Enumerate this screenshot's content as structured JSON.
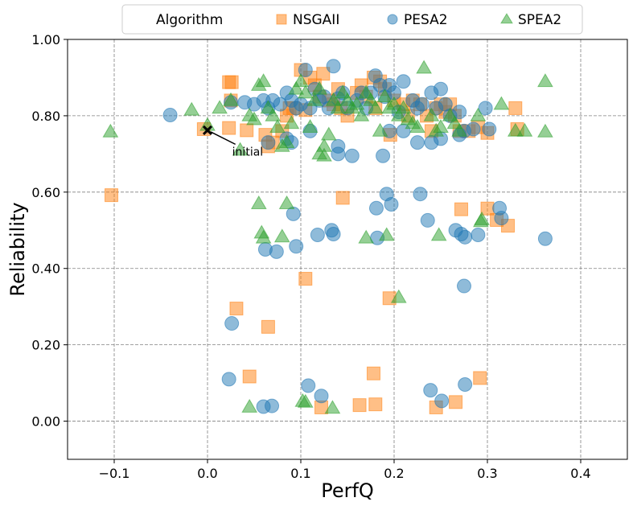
{
  "chart_data": {
    "type": "scatter",
    "xlabel": "PerfQ",
    "ylabel": "Reliability",
    "xlim": [
      -0.15,
      0.45
    ],
    "ylim": [
      -0.1,
      1.0
    ],
    "x_ticks": [
      "-0.1",
      "0.0",
      "0.1",
      "0.2",
      "0.3",
      "0.4"
    ],
    "x_tick_values": [
      -0.1,
      0.0,
      0.1,
      0.2,
      0.3,
      0.4
    ],
    "y_ticks": [
      "0.00",
      "0.20",
      "0.40",
      "0.60",
      "0.80",
      "1.00"
    ],
    "y_tick_values": [
      0.0,
      0.2,
      0.4,
      0.6,
      0.8,
      1.0
    ],
    "grid": true,
    "legend": {
      "title": "Algorithm",
      "placement": "top-center"
    },
    "annotation": {
      "text": "initial",
      "x": 0.0,
      "y": 0.762,
      "text_x": 0.023,
      "text_y": 0.7
    },
    "series": [
      {
        "name": "NSGAII",
        "marker": "square",
        "color": "#ff7f0e",
        "points": [
          [
            -0.103,
            0.592
          ],
          [
            -0.004,
            0.765
          ],
          [
            0.023,
            0.888
          ],
          [
            0.025,
            0.84
          ],
          [
            0.026,
            0.888
          ],
          [
            0.023,
            0.768
          ],
          [
            0.042,
            0.762
          ],
          [
            0.062,
            0.75
          ],
          [
            0.065,
            0.72
          ],
          [
            0.07,
            0.73
          ],
          [
            0.08,
            0.76
          ],
          [
            0.085,
            0.8
          ],
          [
            0.088,
            0.82
          ],
          [
            0.092,
            0.82
          ],
          [
            0.1,
            0.92
          ],
          [
            0.105,
            0.815
          ],
          [
            0.11,
            0.9
          ],
          [
            0.115,
            0.88
          ],
          [
            0.12,
            0.85
          ],
          [
            0.124,
            0.91
          ],
          [
            0.13,
            0.84
          ],
          [
            0.135,
            0.83
          ],
          [
            0.14,
            0.87
          ],
          [
            0.143,
            0.82
          ],
          [
            0.15,
            0.8
          ],
          [
            0.16,
            0.86
          ],
          [
            0.165,
            0.88
          ],
          [
            0.17,
            0.85
          ],
          [
            0.178,
            0.9
          ],
          [
            0.18,
            0.82
          ],
          [
            0.185,
            0.89
          ],
          [
            0.19,
            0.87
          ],
          [
            0.196,
            0.75
          ],
          [
            0.2,
            0.84
          ],
          [
            0.21,
            0.83
          ],
          [
            0.215,
            0.8
          ],
          [
            0.22,
            0.84
          ],
          [
            0.228,
            0.83
          ],
          [
            0.235,
            0.8
          ],
          [
            0.24,
            0.76
          ],
          [
            0.245,
            0.82
          ],
          [
            0.25,
            0.83
          ],
          [
            0.255,
            0.81
          ],
          [
            0.26,
            0.83
          ],
          [
            0.265,
            0.8
          ],
          [
            0.27,
            0.76
          ],
          [
            0.28,
            0.76
          ],
          [
            0.29,
            0.77
          ],
          [
            0.3,
            0.755
          ],
          [
            0.33,
            0.82
          ],
          [
            0.332,
            0.765
          ],
          [
            0.145,
            0.585
          ],
          [
            0.272,
            0.555
          ],
          [
            0.3,
            0.557
          ],
          [
            0.31,
            0.527
          ],
          [
            0.322,
            0.512
          ],
          [
            0.105,
            0.373
          ],
          [
            0.195,
            0.322
          ],
          [
            0.031,
            0.295
          ],
          [
            0.065,
            0.247
          ],
          [
            0.045,
            0.117
          ],
          [
            0.178,
            0.125
          ],
          [
            0.292,
            0.113
          ],
          [
            0.122,
            0.036
          ],
          [
            0.163,
            0.042
          ],
          [
            0.18,
            0.044
          ],
          [
            0.245,
            0.036
          ],
          [
            0.266,
            0.05
          ]
        ]
      },
      {
        "name": "PESA2",
        "marker": "circle",
        "color": "#1f77b4",
        "points": [
          [
            -0.04,
            0.802
          ],
          [
            0.025,
            0.835
          ],
          [
            0.04,
            0.835
          ],
          [
            0.05,
            0.83
          ],
          [
            0.06,
            0.84
          ],
          [
            0.065,
            0.82
          ],
          [
            0.07,
            0.84
          ],
          [
            0.078,
            0.83
          ],
          [
            0.085,
            0.86
          ],
          [
            0.09,
            0.84
          ],
          [
            0.095,
            0.82
          ],
          [
            0.1,
            0.83
          ],
          [
            0.105,
            0.92
          ],
          [
            0.11,
            0.82
          ],
          [
            0.115,
            0.87
          ],
          [
            0.12,
            0.84
          ],
          [
            0.125,
            0.85
          ],
          [
            0.13,
            0.82
          ],
          [
            0.135,
            0.93
          ],
          [
            0.14,
            0.845
          ],
          [
            0.145,
            0.86
          ],
          [
            0.15,
            0.82
          ],
          [
            0.16,
            0.84
          ],
          [
            0.165,
            0.86
          ],
          [
            0.17,
            0.82
          ],
          [
            0.175,
            0.86
          ],
          [
            0.18,
            0.905
          ],
          [
            0.185,
            0.88
          ],
          [
            0.19,
            0.85
          ],
          [
            0.195,
            0.88
          ],
          [
            0.2,
            0.86
          ],
          [
            0.205,
            0.81
          ],
          [
            0.21,
            0.89
          ],
          [
            0.22,
            0.84
          ],
          [
            0.225,
            0.82
          ],
          [
            0.23,
            0.83
          ],
          [
            0.24,
            0.86
          ],
          [
            0.245,
            0.82
          ],
          [
            0.25,
            0.87
          ],
          [
            0.255,
            0.83
          ],
          [
            0.26,
            0.8
          ],
          [
            0.27,
            0.81
          ],
          [
            0.275,
            0.76
          ],
          [
            0.285,
            0.765
          ],
          [
            0.298,
            0.82
          ],
          [
            0.302,
            0.765
          ],
          [
            0.195,
            0.76
          ],
          [
            0.21,
            0.76
          ],
          [
            0.225,
            0.73
          ],
          [
            0.24,
            0.73
          ],
          [
            0.25,
            0.74
          ],
          [
            0.27,
            0.75
          ],
          [
            0.085,
            0.74
          ],
          [
            0.09,
            0.73
          ],
          [
            0.11,
            0.76
          ],
          [
            0.14,
            0.7
          ],
          [
            0.14,
            0.72
          ],
          [
            0.155,
            0.695
          ],
          [
            0.188,
            0.695
          ],
          [
            0.065,
            0.73
          ],
          [
            0.192,
            0.595
          ],
          [
            0.228,
            0.595
          ],
          [
            0.197,
            0.568
          ],
          [
            0.181,
            0.558
          ],
          [
            0.092,
            0.543
          ],
          [
            0.236,
            0.526
          ],
          [
            0.313,
            0.558
          ],
          [
            0.315,
            0.532
          ],
          [
            0.266,
            0.5
          ],
          [
            0.272,
            0.49
          ],
          [
            0.276,
            0.482
          ],
          [
            0.29,
            0.488
          ],
          [
            0.133,
            0.5
          ],
          [
            0.135,
            0.49
          ],
          [
            0.118,
            0.488
          ],
          [
            0.182,
            0.48
          ],
          [
            0.095,
            0.458
          ],
          [
            0.062,
            0.45
          ],
          [
            0.074,
            0.444
          ],
          [
            0.362,
            0.478
          ],
          [
            0.275,
            0.354
          ],
          [
            0.026,
            0.256
          ],
          [
            0.023,
            0.11
          ],
          [
            0.108,
            0.093
          ],
          [
            0.122,
            0.066
          ],
          [
            0.239,
            0.081
          ],
          [
            0.276,
            0.096
          ],
          [
            0.251,
            0.053
          ],
          [
            0.06,
            0.038
          ],
          [
            0.069,
            0.04
          ]
        ]
      },
      {
        "name": "SPEA2",
        "marker": "triangle",
        "color": "#2ca02c",
        "points": [
          [
            -0.104,
            0.758
          ],
          [
            -0.017,
            0.815
          ],
          [
            0.0,
            0.775
          ],
          [
            0.013,
            0.82
          ],
          [
            0.025,
            0.84
          ],
          [
            0.035,
            0.71
          ],
          [
            0.045,
            0.8
          ],
          [
            0.05,
            0.79
          ],
          [
            0.055,
            0.88
          ],
          [
            0.06,
            0.89
          ],
          [
            0.065,
            0.82
          ],
          [
            0.07,
            0.8
          ],
          [
            0.075,
            0.77
          ],
          [
            0.08,
            0.72
          ],
          [
            0.085,
            0.73
          ],
          [
            0.09,
            0.78
          ],
          [
            0.095,
            0.87
          ],
          [
            0.1,
            0.89
          ],
          [
            0.105,
            0.86
          ],
          [
            0.11,
            0.77
          ],
          [
            0.115,
            0.84
          ],
          [
            0.12,
            0.87
          ],
          [
            0.125,
            0.72
          ],
          [
            0.13,
            0.75
          ],
          [
            0.135,
            0.84
          ],
          [
            0.14,
            0.82
          ],
          [
            0.145,
            0.86
          ],
          [
            0.15,
            0.84
          ],
          [
            0.155,
            0.82
          ],
          [
            0.16,
            0.83
          ],
          [
            0.165,
            0.8
          ],
          [
            0.17,
            0.86
          ],
          [
            0.175,
            0.84
          ],
          [
            0.18,
            0.82
          ],
          [
            0.185,
            0.76
          ],
          [
            0.19,
            0.85
          ],
          [
            0.195,
            0.82
          ],
          [
            0.2,
            0.83
          ],
          [
            0.205,
            0.8
          ],
          [
            0.21,
            0.82
          ],
          [
            0.215,
            0.79
          ],
          [
            0.22,
            0.78
          ],
          [
            0.225,
            0.77
          ],
          [
            0.232,
            0.925
          ],
          [
            0.24,
            0.8
          ],
          [
            0.245,
            0.76
          ],
          [
            0.25,
            0.77
          ],
          [
            0.26,
            0.8
          ],
          [
            0.265,
            0.78
          ],
          [
            0.27,
            0.76
          ],
          [
            0.29,
            0.8
          ],
          [
            0.315,
            0.83
          ],
          [
            0.33,
            0.76
          ],
          [
            0.34,
            0.76
          ],
          [
            0.362,
            0.758
          ],
          [
            0.362,
            0.89
          ],
          [
            0.12,
            0.7
          ],
          [
            0.125,
            0.695
          ],
          [
            0.055,
            0.57
          ],
          [
            0.085,
            0.57
          ],
          [
            0.058,
            0.493
          ],
          [
            0.06,
            0.48
          ],
          [
            0.08,
            0.483
          ],
          [
            0.17,
            0.48
          ],
          [
            0.192,
            0.487
          ],
          [
            0.248,
            0.487
          ],
          [
            0.293,
            0.523
          ],
          [
            0.294,
            0.528
          ],
          [
            0.205,
            0.324
          ],
          [
            0.045,
            0.037
          ],
          [
            0.102,
            0.052
          ],
          [
            0.105,
            0.05
          ],
          [
            0.134,
            0.034
          ]
        ]
      }
    ]
  }
}
